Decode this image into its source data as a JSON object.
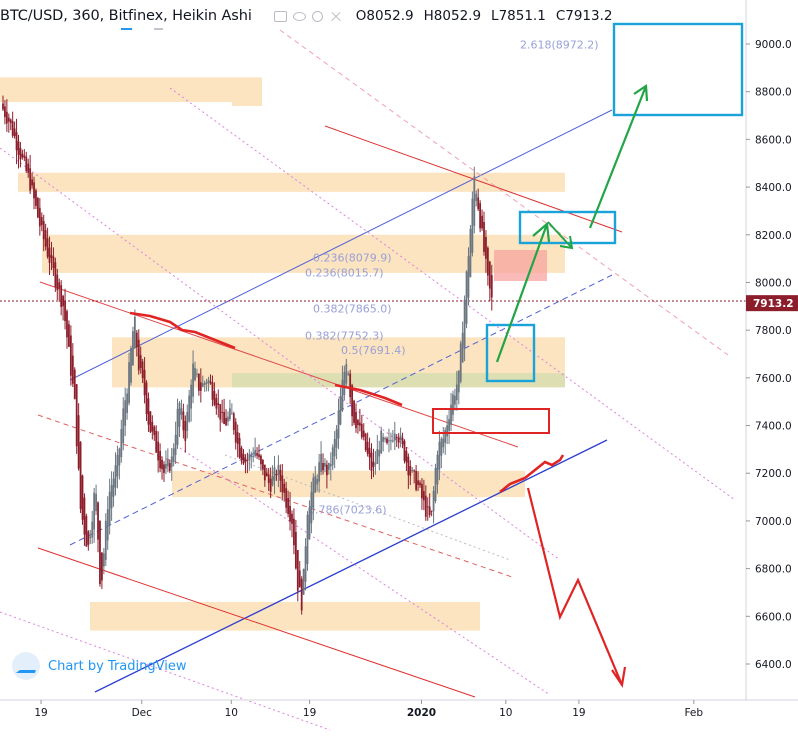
{
  "header": {
    "symbol": "BTC/USD, 360, Bitfinex, Heikin Ashi",
    "open": "O8052.9",
    "high": "H8052.9",
    "low": "L7851.1",
    "close": "C7913.2"
  },
  "watermark": "Chart by TradingView",
  "colors": {
    "candle_up": "#6b7680",
    "candle_down": "#8c1d2b",
    "zone": "#fad9a6",
    "zone_green": "#d7dcb0",
    "fib": "#b9bde6",
    "channel_blue": "#3f51d8",
    "channel_red": "#e03a3a",
    "arrow_green": "#22a546",
    "arrow_red": "#e02424",
    "box_blue": "#1aa3d9",
    "price_label_bg": "#8c1d2b"
  },
  "chart_data": {
    "type": "candlestick",
    "title": "BTC/USD, 360, Bitfinex, Heikin Ashi",
    "ylim": [
      6250,
      9150
    ],
    "y_ticks": [
      6400,
      6600,
      6800,
      7000,
      7200,
      7400,
      7600,
      7800,
      8000,
      8200,
      8400,
      8600,
      8800,
      9000
    ],
    "y_tick_labels": [
      "6400.0",
      "6600.0",
      "6800.0",
      "7000.0",
      "7200.0",
      "7400.0",
      "7600.0",
      "7800.0",
      "8000.0",
      "8200.0",
      "8400.0",
      "8600.0",
      "8800.0",
      "9000.0"
    ],
    "x_ticks": [
      {
        "label": "19",
        "x": 0.055
      },
      {
        "label": "Dec",
        "x": 0.19
      },
      {
        "label": "10",
        "x": 0.31
      },
      {
        "label": "19",
        "x": 0.415
      },
      {
        "label": "2020",
        "x": 0.565
      },
      {
        "label": "10",
        "x": 0.678
      },
      {
        "label": "19",
        "x": 0.776
      },
      {
        "label": "Feb",
        "x": 0.93
      }
    ],
    "last_price": 7913.2,
    "last_price_label": "7913.2",
    "price_path": [
      [
        0.0,
        8750
      ],
      [
        0.012,
        8680
      ],
      [
        0.025,
        8560
      ],
      [
        0.04,
        8420
      ],
      [
        0.055,
        8220
      ],
      [
        0.07,
        8060
      ],
      [
        0.085,
        7900
      ],
      [
        0.1,
        7500
      ],
      [
        0.108,
        7050
      ],
      [
        0.118,
        6880
      ],
      [
        0.128,
        7150
      ],
      [
        0.135,
        6700
      ],
      [
        0.145,
        7100
      ],
      [
        0.158,
        7250
      ],
      [
        0.165,
        7450
      ],
      [
        0.172,
        7600
      ],
      [
        0.18,
        7850
      ],
      [
        0.186,
        7650
      ],
      [
        0.193,
        7550
      ],
      [
        0.2,
        7400
      ],
      [
        0.21,
        7300
      ],
      [
        0.22,
        7200
      ],
      [
        0.23,
        7250
      ],
      [
        0.24,
        7500
      ],
      [
        0.248,
        7350
      ],
      [
        0.258,
        7650
      ],
      [
        0.268,
        7550
      ],
      [
        0.278,
        7600
      ],
      [
        0.29,
        7500
      ],
      [
        0.3,
        7400
      ],
      [
        0.31,
        7450
      ],
      [
        0.32,
        7300
      ],
      [
        0.33,
        7250
      ],
      [
        0.342,
        7300
      ],
      [
        0.352,
        7200
      ],
      [
        0.362,
        7150
      ],
      [
        0.372,
        7220
      ],
      [
        0.382,
        7100
      ],
      [
        0.392,
        7000
      ],
      [
        0.398,
        6750
      ],
      [
        0.405,
        6650
      ],
      [
        0.412,
        7050
      ],
      [
        0.42,
        7150
      ],
      [
        0.43,
        7250
      ],
      [
        0.44,
        7200
      ],
      [
        0.45,
        7350
      ],
      [
        0.458,
        7550
      ],
      [
        0.465,
        7700
      ],
      [
        0.472,
        7450
      ],
      [
        0.48,
        7400
      ],
      [
        0.49,
        7300
      ],
      [
        0.5,
        7200
      ],
      [
        0.51,
        7350
      ],
      [
        0.52,
        7300
      ],
      [
        0.53,
        7400
      ],
      [
        0.54,
        7300
      ],
      [
        0.55,
        7200
      ],
      [
        0.56,
        7150
      ],
      [
        0.57,
        7050
      ],
      [
        0.578,
        7000
      ],
      [
        0.586,
        7300
      ],
      [
        0.595,
        7350
      ],
      [
        0.605,
        7500
      ],
      [
        0.615,
        7600
      ],
      [
        0.622,
        7900
      ],
      [
        0.63,
        8200
      ],
      [
        0.636,
        8450
      ],
      [
        0.642,
        8300
      ],
      [
        0.648,
        8150
      ],
      [
        0.654,
        8000
      ],
      [
        0.66,
        7913
      ]
    ],
    "fib_labels": [
      {
        "text": "2.618(8972.2)",
        "value": 8972.2
      },
      {
        "text": "0.236(8079.9)",
        "value": 8079.9
      },
      {
        "text": "0.236(8015.7)",
        "value": 8015.7
      },
      {
        "text": "0.382(7865.0)",
        "value": 7865.0
      },
      {
        "text": "0.382(7752.3)",
        "value": 7752.3
      },
      {
        "text": "0.5(7691.4)",
        "value": 7691.4
      },
      {
        "text": "0.786(7023.6)",
        "value": 7023.6
      }
    ],
    "zones": [
      {
        "from": 8740,
        "to": 8860
      },
      {
        "from": 8380,
        "to": 8460
      },
      {
        "from": 8040,
        "to": 8200
      },
      {
        "from": 7560,
        "to": 7770
      },
      {
        "from": 7100,
        "to": 7210
      },
      {
        "from": 6540,
        "to": 6660
      }
    ]
  }
}
